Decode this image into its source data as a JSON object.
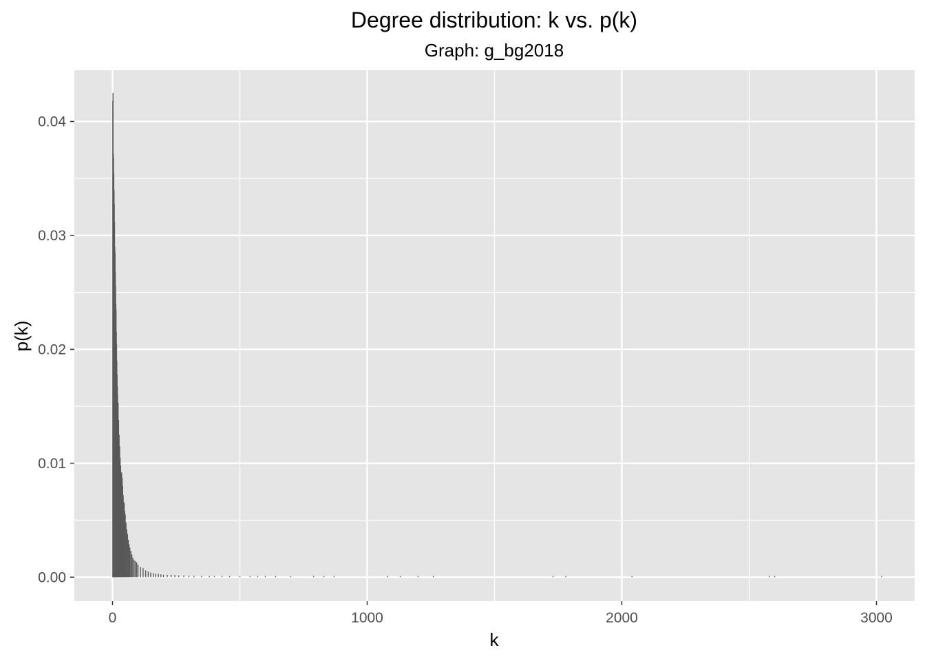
{
  "chart_data": {
    "type": "bar",
    "title": "Degree distribution: k vs. p(k)",
    "subtitle": "Graph: g_bg2018",
    "xlabel": "k",
    "ylabel": "p(k)",
    "xlim": [
      -150,
      3150
    ],
    "ylim": [
      -0.0021,
      0.0445
    ],
    "x_ticks": [
      0,
      1000,
      2000,
      3000
    ],
    "x_tick_labels": [
      "0",
      "1000",
      "2000",
      "3000"
    ],
    "y_ticks": [
      0.0,
      0.01,
      0.02,
      0.03,
      0.04
    ],
    "y_tick_labels": [
      "0.00",
      "0.01",
      "0.02",
      "0.03",
      "0.04"
    ],
    "x_minor_ticks": [
      500,
      1500,
      2500
    ],
    "y_minor_ticks": [
      0.005,
      0.015,
      0.025,
      0.035
    ],
    "grid": true,
    "colors": {
      "panel": "#e5e5e5",
      "grid": "#ffffff",
      "bar": "#595959"
    },
    "series": [
      {
        "x": [
          1,
          2,
          3,
          4,
          5,
          6,
          7,
          8,
          9,
          10,
          11,
          12,
          13,
          14,
          15,
          16,
          17,
          18,
          19,
          20,
          22,
          24,
          26,
          28,
          30,
          32,
          34,
          36,
          38,
          40,
          42,
          44,
          46,
          48,
          50,
          53,
          56,
          59,
          62,
          65,
          68,
          72,
          76,
          80,
          85,
          90,
          95,
          100,
          110,
          120,
          130,
          140,
          150,
          160,
          170,
          180,
          190,
          200,
          215,
          230,
          245,
          260,
          280,
          300,
          320,
          350,
          380,
          400,
          430,
          460,
          500,
          540,
          570,
          600,
          640,
          700,
          790,
          830,
          870,
          1080,
          1130,
          1200,
          1260,
          1730,
          1780,
          2040,
          2580,
          2600,
          3020
        ],
        "y": [
          0.0418,
          0.0425,
          0.0372,
          0.0368,
          0.0355,
          0.034,
          0.0328,
          0.0312,
          0.029,
          0.0285,
          0.0268,
          0.0255,
          0.024,
          0.0235,
          0.0215,
          0.0205,
          0.019,
          0.0178,
          0.0168,
          0.016,
          0.0153,
          0.0138,
          0.0125,
          0.0115,
          0.0105,
          0.0098,
          0.009,
          0.0092,
          0.0087,
          0.008,
          0.0072,
          0.0066,
          0.0065,
          0.0058,
          0.0055,
          0.0048,
          0.0042,
          0.0038,
          0.0033,
          0.0029,
          0.0026,
          0.0023,
          0.002,
          0.0017,
          0.0015,
          0.0014,
          0.0013,
          0.0011,
          0.0009,
          0.0008,
          0.0006,
          0.0005,
          0.0004,
          0.00035,
          0.0003,
          0.0003,
          0.00025,
          0.0002,
          0.0002,
          0.0002,
          0.00018,
          0.00015,
          0.00015,
          0.00012,
          0.00012,
          0.0001,
          0.0001,
          0.0001,
          0.0001,
          0.0001,
          0.0001,
          0.0001,
          0.0001,
          0.0001,
          0.0001,
          0.0001,
          0.0001,
          0.0001,
          0.0001,
          0.0001,
          0.0001,
          0.0001,
          0.0001,
          0.0001,
          0.0001,
          0.0001,
          0.0001,
          0.0001,
          0.0001
        ]
      }
    ]
  }
}
